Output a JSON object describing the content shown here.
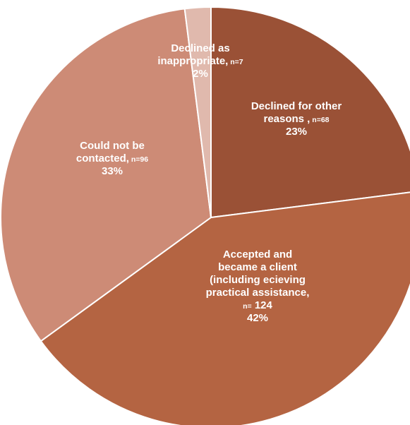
{
  "chart_data": {
    "type": "pie",
    "title": "",
    "start_angle_deg": 0,
    "direction": "clockwise",
    "slices": [
      {
        "name": "Declined for other reasons",
        "n": 68,
        "value": 23,
        "color": "#9a5136",
        "label_lines": [
          {
            "text": "Declined for other"
          },
          {
            "text": "reasons ,",
            "count": "n=68"
          },
          {
            "text": "23%"
          }
        ]
      },
      {
        "name": "Accepted and became a client (including ecieving practical assistance",
        "n": 124,
        "value": 42,
        "color": "#b46442",
        "label_lines": [
          {
            "text": "Accepted and"
          },
          {
            "text": "became a client"
          },
          {
            "text": "(including ecieving"
          },
          {
            "text": "practical assistance,"
          },
          {
            "text": "",
            "count": "n=",
            "tail": "124"
          },
          {
            "text": "42%"
          }
        ]
      },
      {
        "name": "Could not be contacted",
        "n": 96,
        "value": 33,
        "color": "#cd8b76",
        "label_lines": [
          {
            "text": "Could not be"
          },
          {
            "text": "contacted,",
            "count": "n=96"
          },
          {
            "text": "33%"
          }
        ]
      },
      {
        "name": "Declined as inappropriate",
        "n": 7,
        "value": 2,
        "color": "#e0b9ad",
        "label_lines": [
          {
            "text": "Declined as"
          },
          {
            "text": "inappropriate,",
            "count": "n=7"
          },
          {
            "text": "2%"
          }
        ]
      }
    ],
    "slice_border_color": "#ffffff",
    "label_color": "#ffffff"
  }
}
